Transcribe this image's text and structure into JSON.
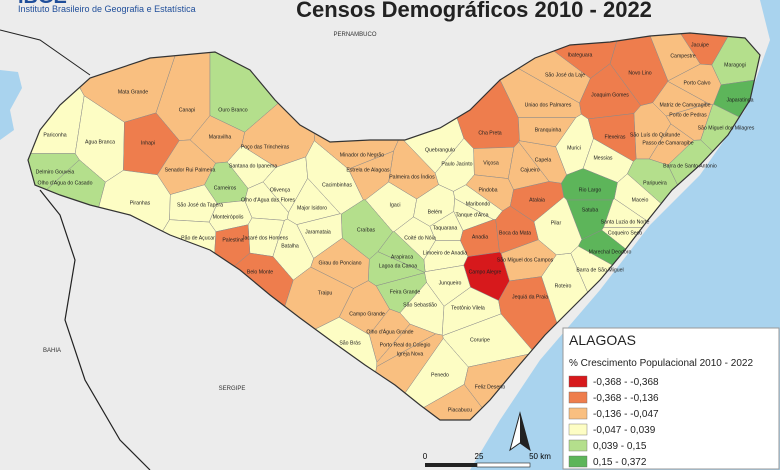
{
  "header": {
    "logo": "IBGE",
    "org": "Instituto Brasileiro de Geografia e Estatística",
    "title": "Censos Demográficos 2010 - 2022"
  },
  "neighbors": [
    "PERNAMBUCO",
    "BAHIA",
    "SERGIPE"
  ],
  "legend": {
    "title": "ALAGOAS",
    "subtitle": "% Crescimento Populacional 2010 - 2022",
    "classes": [
      {
        "label": "-0,368 - -0,368",
        "color": "#d7191c"
      },
      {
        "label": "-0,368 - -0,136",
        "color": "#ee7d4d"
      },
      {
        "label": "-0,136 - -0,047",
        "color": "#f9bf80"
      },
      {
        "label": "-0,047 - 0,039",
        "color": "#fdfdc4"
      },
      {
        "label": "0,039 - 0,15",
        "color": "#b4df8c"
      },
      {
        "label": "0,15 - 0,372",
        "color": "#5db55a"
      }
    ]
  },
  "scale": [
    "0",
    "25",
    "50 km"
  ],
  "municipalities": [
    {
      "name": "Pariconha",
      "color": "#fdfdc4"
    },
    {
      "name": "Agua Branca",
      "color": "#fdfdc4"
    },
    {
      "name": "Mata Grande",
      "color": "#f9bf80"
    },
    {
      "name": "Canapi",
      "color": "#f9bf80"
    },
    {
      "name": "Inhapi",
      "color": "#ee7d4d"
    },
    {
      "name": "Ouro Branco",
      "color": "#b4df8c"
    },
    {
      "name": "Maravilha",
      "color": "#f9bf80"
    },
    {
      "name": "Poço das Trincheiras",
      "color": "#f9bf80"
    },
    {
      "name": "Senador Rui Palmeira",
      "color": "#f9bf80"
    },
    {
      "name": "Santana do Ipanema",
      "color": "#fdfdc4"
    },
    {
      "name": "Delmiro Gouveia",
      "color": "#b4df8c"
    },
    {
      "name": "Olho d'Agua do Casado",
      "color": "#b4df8c"
    },
    {
      "name": "Piranhas",
      "color": "#fdfdc4"
    },
    {
      "name": "Carneiros",
      "color": "#b4df8c"
    },
    {
      "name": "Olho d'Agua das Flores",
      "color": "#fdfdc4"
    },
    {
      "name": "Olivença",
      "color": "#fdfdc4"
    },
    {
      "name": "São José da Tapera",
      "color": "#fdfdc4"
    },
    {
      "name": "Monteirópolis",
      "color": "#fdfdc4"
    },
    {
      "name": "Pão de Açucar",
      "color": "#fdfdc4"
    },
    {
      "name": "Jacaré dos Homens",
      "color": "#fdfdc4"
    },
    {
      "name": "Palestina",
      "color": "#ee7d4d"
    },
    {
      "name": "Batalha",
      "color": "#fdfdc4"
    },
    {
      "name": "Major Isidoro",
      "color": "#fdfdc4"
    },
    {
      "name": "Jaramataia",
      "color": "#fdfdc4"
    },
    {
      "name": "Belo Monte",
      "color": "#ee7d4d"
    },
    {
      "name": "Cacimbinhas",
      "color": "#fdfdc4"
    },
    {
      "name": "Minador do Negrão",
      "color": "#f9bf80"
    },
    {
      "name": "Estrela de Alagoas",
      "color": "#f9bf80"
    },
    {
      "name": "Palmeira dos Índios",
      "color": "#f9bf80"
    },
    {
      "name": "Quebrangulo",
      "color": "#fdfdc4"
    },
    {
      "name": "Paulo Jacinto",
      "color": "#fdfdc4"
    },
    {
      "name": "Igaci",
      "color": "#fdfdc4"
    },
    {
      "name": "Craíbas",
      "color": "#b4df8c"
    },
    {
      "name": "Belém",
      "color": "#fdfdc4"
    },
    {
      "name": "Tanque d'Arca",
      "color": "#fdfdc4"
    },
    {
      "name": "Cha Preta",
      "color": "#ee7d4d"
    },
    {
      "name": "Viçosa",
      "color": "#f9bf80"
    },
    {
      "name": "Pindoba",
      "color": "#f9bf80"
    },
    {
      "name": "Maribondo",
      "color": "#fdfdc4"
    },
    {
      "name": "Taquarana",
      "color": "#fdfdc4"
    },
    {
      "name": "Coité do Nóia",
      "color": "#fdfdc4"
    },
    {
      "name": "Limoeiro de Anadia",
      "color": "#fdfdc4"
    },
    {
      "name": "Anadia",
      "color": "#ee7d4d"
    },
    {
      "name": "Boca da Mata",
      "color": "#ee7d4d"
    },
    {
      "name": "Arapiraca",
      "color": "#b4df8c"
    },
    {
      "name": "Lagoa da Canoa",
      "color": "#b4df8c"
    },
    {
      "name": "Girau do Ponciano",
      "color": "#f9bf80"
    },
    {
      "name": "Traipu",
      "color": "#f9bf80"
    },
    {
      "name": "Campo Alegre",
      "color": "#d7191c"
    },
    {
      "name": "São Miguel dos Campos",
      "color": "#f9bf80"
    },
    {
      "name": "Junqueiro",
      "color": "#fdfdc4"
    },
    {
      "name": "Feira Grande",
      "color": "#b4df8c"
    },
    {
      "name": "São Sebastião",
      "color": "#fdfdc4"
    },
    {
      "name": "Teotônio Vilela",
      "color": "#fdfdc4"
    },
    {
      "name": "Jequiá da Praia",
      "color": "#ee7d4d"
    },
    {
      "name": "Roteiro",
      "color": "#fdfdc4"
    },
    {
      "name": "Campo Grande",
      "color": "#f9bf80"
    },
    {
      "name": "Olho d'Água Grande",
      "color": "#f9bf80"
    },
    {
      "name": "São Brás",
      "color": "#fdfdc4"
    },
    {
      "name": "Porto Real do Colegio",
      "color": "#f9bf80"
    },
    {
      "name": "Igreja Nova",
      "color": "#f9bf80"
    },
    {
      "name": "Coruripe",
      "color": "#fdfdc4"
    },
    {
      "name": "Penedo",
      "color": "#fdfdc4"
    },
    {
      "name": "Feliz Deserto",
      "color": "#f9bf80"
    },
    {
      "name": "Piacabucu",
      "color": "#f9bf80"
    },
    {
      "name": "Atalaia",
      "color": "#ee7d4d"
    },
    {
      "name": "Cajueiro",
      "color": "#f9bf80"
    },
    {
      "name": "Capela",
      "color": "#f9bf80"
    },
    {
      "name": "Branquinha",
      "color": "#f9bf80"
    },
    {
      "name": "Murici",
      "color": "#fdfdc4"
    },
    {
      "name": "Uniao dos Palmares",
      "color": "#f9bf80"
    },
    {
      "name": "São José da Laje",
      "color": "#f9bf80"
    },
    {
      "name": "Ibateguara",
      "color": "#ee7d4d"
    },
    {
      "name": "Joaquim Gomes",
      "color": "#ee7d4d"
    },
    {
      "name": "Novo Lino",
      "color": "#ee7d4d"
    },
    {
      "name": "Jacuipe",
      "color": "#ee7d4d"
    },
    {
      "name": "Campestre",
      "color": "#f9bf80"
    },
    {
      "name": "Maragogi",
      "color": "#b4df8c"
    },
    {
      "name": "Porto Calvo",
      "color": "#f9bf80"
    },
    {
      "name": "Japaratinga",
      "color": "#5db55a"
    },
    {
      "name": "Matriz de Camaragibe",
      "color": "#f9bf80"
    },
    {
      "name": "Porto de Pedras",
      "color": "#f9bf80"
    },
    {
      "name": "São Luís do Quitunde",
      "color": "#f9bf80"
    },
    {
      "name": "Passo de Camaragibe",
      "color": "#f9bf80"
    },
    {
      "name": "São Miguel dos Milagres",
      "color": "#b4df8c"
    },
    {
      "name": "Barra de Santo Antonio",
      "color": "#b4df8c"
    },
    {
      "name": "Flexeiras",
      "color": "#ee7d4d"
    },
    {
      "name": "Messias",
      "color": "#fdfdc4"
    },
    {
      "name": "Rio Largo",
      "color": "#5db55a"
    },
    {
      "name": "Paripueira",
      "color": "#b4df8c"
    },
    {
      "name": "Satuba",
      "color": "#5db55a"
    },
    {
      "name": "Maceio",
      "color": "#fdfdc4"
    },
    {
      "name": "Pilar",
      "color": "#fdfdc4"
    },
    {
      "name": "Santa Luzia do Norte",
      "color": "#fdfdc4"
    },
    {
      "name": "Coqueiro Seco",
      "color": "#fdfdc4"
    },
    {
      "name": "Marechal Deodoro",
      "color": "#5db55a"
    },
    {
      "name": "Barra de São Miguel",
      "color": "#fdfdc4"
    }
  ]
}
